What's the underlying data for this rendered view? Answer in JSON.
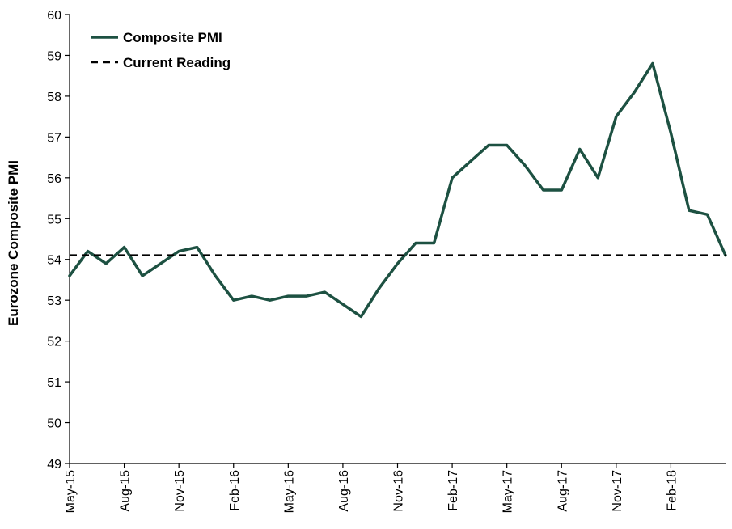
{
  "chart_data": {
    "type": "line",
    "ylabel": "Eurozone Composite PMI",
    "ylim": [
      49,
      60
    ],
    "y_ticks": [
      "49",
      "50",
      "51",
      "52",
      "53",
      "54",
      "55",
      "56",
      "57",
      "58",
      "59",
      "60"
    ],
    "x_tick_labels": [
      "May-15",
      "Aug-15",
      "Nov-15",
      "Feb-16",
      "May-16",
      "Aug-16",
      "Nov-16",
      "Feb-17",
      "May-17",
      "Aug-17",
      "Nov-17",
      "Feb-18"
    ],
    "x": [
      "May-15",
      "Jun-15",
      "Jul-15",
      "Aug-15",
      "Sep-15",
      "Oct-15",
      "Nov-15",
      "Dec-15",
      "Jan-16",
      "Feb-16",
      "Mar-16",
      "Apr-16",
      "May-16",
      "Jun-16",
      "Jul-16",
      "Aug-16",
      "Sep-16",
      "Oct-16",
      "Nov-16",
      "Dec-16",
      "Jan-17",
      "Feb-17",
      "Mar-17",
      "Apr-17",
      "May-17",
      "Jun-17",
      "Jul-17",
      "Aug-17",
      "Sep-17",
      "Oct-17",
      "Nov-17",
      "Dec-17",
      "Jan-18",
      "Feb-18",
      "Mar-18",
      "Apr-18",
      "May-18"
    ],
    "series": [
      {
        "name": "Composite PMI",
        "color": "#1d5142",
        "style": "solid",
        "values": [
          53.6,
          54.2,
          53.9,
          54.3,
          53.6,
          53.9,
          54.2,
          54.3,
          53.6,
          53.0,
          53.1,
          53.0,
          53.1,
          53.1,
          53.2,
          52.9,
          52.6,
          53.3,
          53.9,
          54.4,
          54.4,
          56.0,
          56.4,
          56.8,
          56.8,
          56.3,
          55.7,
          55.7,
          56.7,
          56.0,
          57.5,
          58.1,
          58.8,
          57.1,
          55.2,
          55.1,
          54.1
        ]
      },
      {
        "name": "Current Reading",
        "color": "#000000",
        "style": "dashed",
        "value": 54.1
      }
    ],
    "legend_position": "top-left",
    "grid": false
  }
}
